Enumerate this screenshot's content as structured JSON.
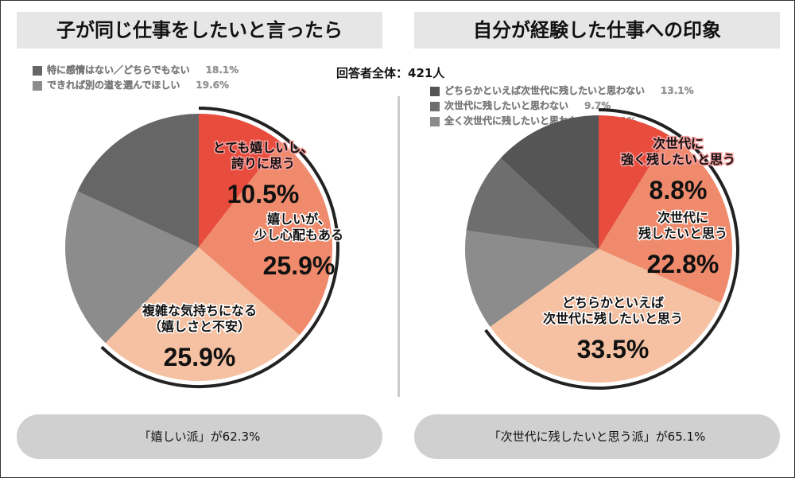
{
  "total_label": "回答者全体：421人",
  "chart_data": [
    {
      "type": "pie",
      "title": "子が同じ仕事をしたいと言ったら",
      "slices": [
        {
          "label": "とても嬉しいし、\n誇りに思う",
          "value": 10.5,
          "color": "#e84c3d",
          "labeled": true
        },
        {
          "label": "嬉しいが、\n少し心配もある",
          "value": 25.9,
          "color": "#ef8b6c",
          "labeled": true
        },
        {
          "label": "複雑な気持ちになる\n（嬉しさと不安）",
          "value": 25.9,
          "color": "#f5c1a2",
          "labeled": true
        },
        {
          "label": "できれば別の道を選んでほしい",
          "value": 19.6,
          "color": "#8c8c8c",
          "labeled": false
        },
        {
          "label": "特に感情はない／どちらでもない",
          "value": 18.1,
          "color": "#666666",
          "labeled": false
        }
      ],
      "legend": [
        {
          "label": "特に感情はない／どちらでもない",
          "value": "18.1%",
          "color": "#666666"
        },
        {
          "label": "できれば別の道を選んでほしい",
          "value": "19.6%",
          "color": "#8c8c8c"
        }
      ],
      "summary": "「嬉しい派」が62.3%",
      "summary_value": 62.3
    },
    {
      "type": "pie",
      "title": "自分が経験した仕事への印象",
      "slices": [
        {
          "label": "次世代に\n強く残したいと思う",
          "value": 8.8,
          "color": "#e84c3d",
          "labeled": true
        },
        {
          "label": "次世代に\n残したいと思う",
          "value": 22.8,
          "color": "#ef8b6c",
          "labeled": true
        },
        {
          "label": "どちらかといえば\n次世代に残したいと思う",
          "value": 33.5,
          "color": "#f5c1a2",
          "labeled": true
        },
        {
          "label": "全く次世代に残したいと思わない",
          "value": 12.1,
          "color": "#8c8c8c",
          "labeled": false
        },
        {
          "label": "次世代に残したいと思わない",
          "value": 9.7,
          "color": "#6e6e6e",
          "labeled": false
        },
        {
          "label": "どちらかといえば次世代に残したいと思わない",
          "value": 13.1,
          "color": "#555555",
          "labeled": false
        }
      ],
      "legend": [
        {
          "label": "どちらかといえば次世代に残したいと思わない",
          "value": "13.1%",
          "color": "#555555"
        },
        {
          "label": "次世代に残したいと思わない",
          "value": "9.7%",
          "color": "#6e6e6e"
        },
        {
          "label": "全く次世代に残したいと思わない",
          "value": "12.1%",
          "color": "#8c8c8c"
        }
      ],
      "summary": "「次世代に残したいと思う派」が65.1%",
      "summary_value": 65.1
    }
  ]
}
